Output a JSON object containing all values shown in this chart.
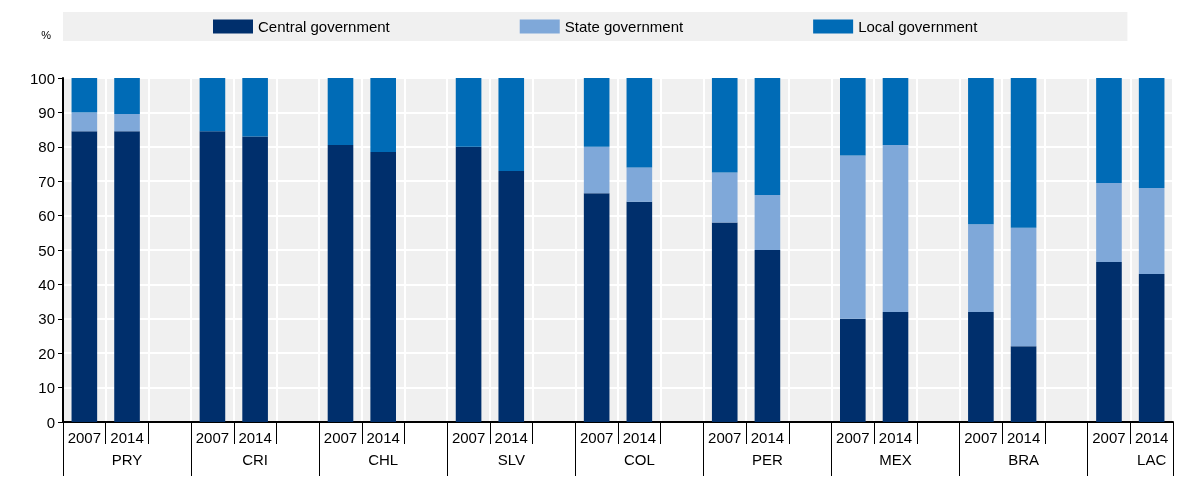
{
  "chart_data": {
    "type": "bar",
    "stacked": true,
    "ylabel": "%",
    "categories": [
      "2007",
      "2014",
      null,
      "2007",
      "2014",
      null,
      "2007",
      "2014",
      null,
      "2007",
      "2014",
      null,
      "2007",
      "2014",
      null,
      "2007",
      "2014",
      null,
      "2007",
      "2014",
      null,
      "2007",
      "2014",
      null,
      "2007",
      "2014"
    ],
    "annotations": [
      "PRY",
      "CRI",
      "CHL",
      "SLV",
      "COL",
      "PER",
      "MEX",
      "BRA",
      "LAC"
    ],
    "series": [
      {
        "name": "Central government",
        "color": "#002f6c",
        "values": [
          84.5,
          84.5,
          null,
          84.5,
          83,
          null,
          80.5,
          78.5,
          null,
          80,
          73,
          null,
          66.5,
          64,
          null,
          58,
          50,
          null,
          30,
          32,
          null,
          32,
          22,
          null,
          46.5,
          43
        ]
      },
      {
        "name": "State government",
        "color": "#7fa8d9",
        "values": [
          5.5,
          5,
          null,
          0,
          0,
          null,
          0,
          0,
          null,
          0,
          0,
          null,
          13.5,
          10,
          null,
          14.5,
          16,
          null,
          47.5,
          48.5,
          null,
          25.5,
          34.5,
          null,
          23,
          25
        ]
      },
      {
        "name": "Local government",
        "color": "#006bb6",
        "values": [
          10,
          10.5,
          null,
          15.5,
          17,
          null,
          19.5,
          21.5,
          null,
          20,
          27,
          null,
          20,
          26,
          null,
          27.5,
          34,
          null,
          22.5,
          19.5,
          null,
          42.5,
          43.5,
          null,
          30.5,
          32
        ]
      }
    ],
    "ylim": [
      0,
      100
    ],
    "yticks": [
      0,
      10,
      20,
      30,
      40,
      50,
      60,
      70,
      80,
      90,
      100
    ],
    "grid": true,
    "legend": "top"
  }
}
